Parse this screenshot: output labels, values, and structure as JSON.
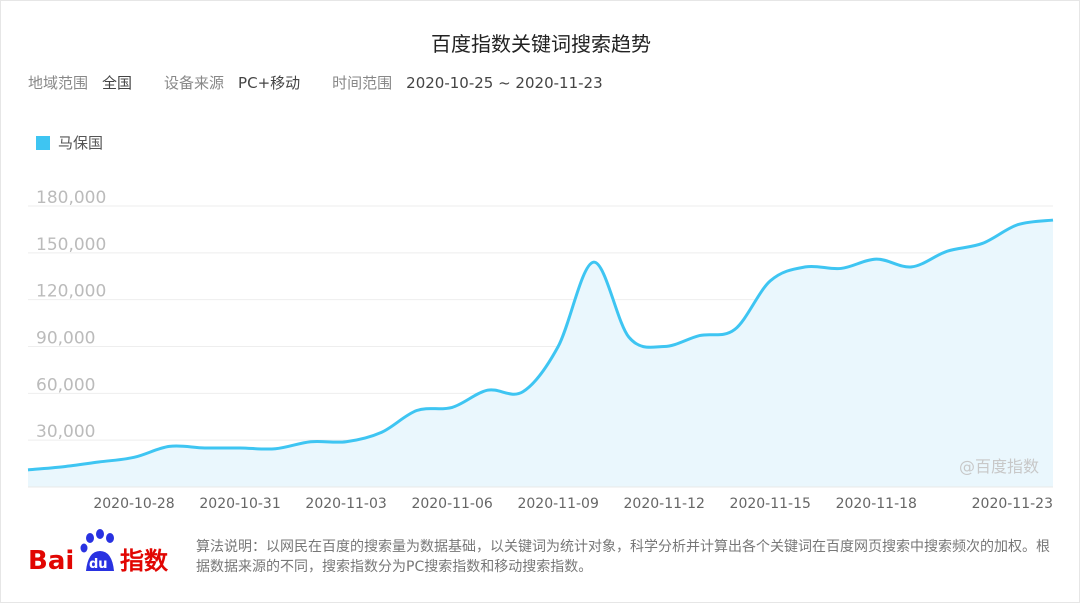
{
  "header": {
    "title": "百度指数关键词搜索趋势",
    "region_label": "地域范围",
    "region_value": "全国",
    "device_label": "设备来源",
    "device_value": "PC+移动",
    "time_label": "时间范围",
    "time_value": "2020-10-25 ~ 2020-11-23"
  },
  "watermark": "@百度指数",
  "footer": {
    "logo_text_bai": "Bai",
    "logo_text_du": "du",
    "logo_text_index": "指数",
    "note": "算法说明：以网民在百度的搜索量为数据基础，以关键词为统计对象，科学分析并计算出各个关键词在百度网页搜索中搜索频次的加权。根据数据来源的不同，搜索指数分为PC搜索指数和移动搜索指数。"
  },
  "colors": {
    "series": "#3ec5f2",
    "area_fill": "#eaf7fd",
    "grid": "#eeeeee",
    "baidu_red": "#e10602",
    "baidu_blue": "#2932e1"
  },
  "chart_data": {
    "type": "area",
    "title": "",
    "xlabel": "",
    "ylabel": "",
    "ylim": [
      0,
      180000
    ],
    "y_ticks": [
      30000,
      60000,
      90000,
      120000,
      150000,
      180000
    ],
    "y_tick_labels": [
      "30,000",
      "60,000",
      "90,000",
      "120,000",
      "150,000",
      "180,000"
    ],
    "x_ticks": [
      "2020-10-28",
      "2020-10-31",
      "2020-11-03",
      "2020-11-06",
      "2020-11-09",
      "2020-11-12",
      "2020-11-15",
      "2020-11-18",
      "2020-11-23"
    ],
    "grid": true,
    "legend_position": "top-left",
    "series": [
      {
        "name": "马保国",
        "x": [
          "2020-10-25",
          "2020-10-26",
          "2020-10-27",
          "2020-10-28",
          "2020-10-29",
          "2020-10-30",
          "2020-10-31",
          "2020-11-01",
          "2020-11-02",
          "2020-11-03",
          "2020-11-04",
          "2020-11-05",
          "2020-11-06",
          "2020-11-07",
          "2020-11-08",
          "2020-11-09",
          "2020-11-10",
          "2020-11-11",
          "2020-11-12",
          "2020-11-13",
          "2020-11-14",
          "2020-11-15",
          "2020-11-16",
          "2020-11-17",
          "2020-11-18",
          "2020-11-19",
          "2020-11-20",
          "2020-11-21",
          "2020-11-22",
          "2020-11-23"
        ],
        "values": [
          11000,
          13000,
          16000,
          19000,
          26000,
          25000,
          25000,
          24500,
          29000,
          29000,
          35000,
          49000,
          51000,
          62000,
          61000,
          90000,
          144000,
          96000,
          90000,
          97000,
          101000,
          132000,
          141000,
          140000,
          146000,
          141000,
          151000,
          156000,
          168000,
          171000
        ]
      }
    ]
  }
}
